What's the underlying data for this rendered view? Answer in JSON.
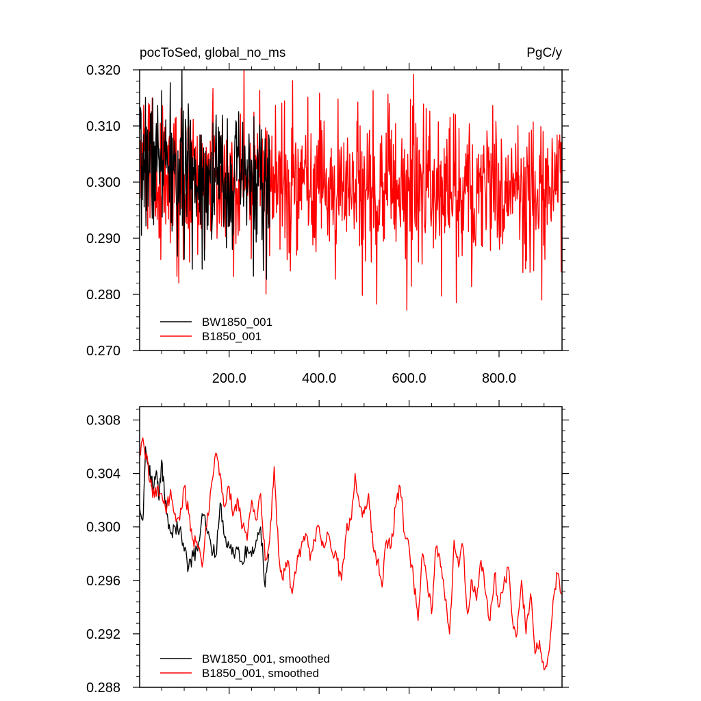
{
  "chart_data": [
    {
      "type": "line",
      "title_left": "pocToSed, global_no_ms",
      "title_right": "PgC/y",
      "xlim": [
        1,
        940
      ],
      "ylim": [
        0.27,
        0.32
      ],
      "x_ticks": [
        200.0,
        400.0,
        600.0,
        800.0
      ],
      "x_tick_labels": [
        "200.0",
        "400.0",
        "600.0",
        "800.0"
      ],
      "y_ticks": [
        0.27,
        0.28,
        0.29,
        0.3,
        0.31,
        0.32
      ],
      "y_tick_labels": [
        "0.270",
        "0.280",
        "0.290",
        "0.300",
        "0.310",
        "0.320"
      ],
      "legend_position": "bottom-left",
      "series": [
        {
          "name": "BW1850_001",
          "color": "#000000",
          "x_range": [
            1,
            290
          ],
          "mean_approx": 0.3,
          "notable_points": [
            [
              5,
              0.2905
            ],
            [
              50,
              0.3163
            ],
            [
              85,
              0.2868
            ],
            [
              140,
              0.2845
            ],
            [
              260,
              0.2893
            ],
            [
              283,
              0.2827
            ]
          ]
        },
        {
          "name": "B1850_001",
          "color": "#ff0000",
          "x_range": [
            1,
            940
          ],
          "mean_approx": 0.298,
          "notable_points": [
            [
              10,
              0.3137
            ],
            [
              48,
              0.2862
            ],
            [
              210,
              0.2832
            ],
            [
              442,
              0.3148
            ],
            [
              595,
              0.2772
            ],
            [
              610,
              0.3192
            ],
            [
              705,
              0.2785
            ],
            [
              895,
              0.279
            ],
            [
              938,
              0.284
            ]
          ]
        }
      ]
    },
    {
      "type": "line",
      "xlim": [
        1,
        940
      ],
      "ylim": [
        0.288,
        0.309
      ],
      "y_ticks": [
        0.288,
        0.292,
        0.296,
        0.3,
        0.304,
        0.308
      ],
      "y_tick_labels": [
        "0.288",
        "0.292",
        "0.296",
        "0.300",
        "0.304",
        "0.308"
      ],
      "legend_position": "bottom-left",
      "series": [
        {
          "name": "BW1850_001, smoothed",
          "color": "#000000",
          "x": [
            1,
            8,
            14,
            20,
            26,
            32,
            38,
            44,
            50,
            56,
            62,
            70,
            80,
            90,
            100,
            110,
            120,
            130,
            140,
            150,
            160,
            170,
            180,
            190,
            200,
            210,
            220,
            230,
            240,
            250,
            260,
            270,
            280,
            288
          ],
          "y": [
            0.3015,
            0.3005,
            0.306,
            0.3048,
            0.3038,
            0.3028,
            0.3042,
            0.302,
            0.305,
            0.3025,
            0.301,
            0.2995,
            0.3,
            0.2998,
            0.2982,
            0.297,
            0.2978,
            0.2982,
            0.301,
            0.2998,
            0.2985,
            0.2978,
            0.3018,
            0.2992,
            0.2985,
            0.298,
            0.2985,
            0.2972,
            0.2985,
            0.2978,
            0.299,
            0.3,
            0.2955,
            0.298
          ]
        },
        {
          "name": "B1850_001, smoothed",
          "color": "#ff0000",
          "x": [
            1,
            10,
            20,
            30,
            40,
            50,
            60,
            70,
            80,
            90,
            100,
            110,
            120,
            130,
            140,
            150,
            160,
            170,
            180,
            190,
            200,
            210,
            220,
            230,
            240,
            250,
            260,
            270,
            280,
            290,
            300,
            310,
            320,
            330,
            340,
            350,
            360,
            370,
            380,
            390,
            400,
            410,
            420,
            430,
            440,
            450,
            460,
            470,
            480,
            490,
            500,
            510,
            520,
            530,
            540,
            550,
            560,
            570,
            580,
            590,
            600,
            610,
            620,
            630,
            640,
            650,
            660,
            670,
            680,
            690,
            700,
            710,
            720,
            730,
            740,
            750,
            760,
            770,
            780,
            790,
            800,
            810,
            820,
            830,
            840,
            850,
            860,
            870,
            880,
            890,
            900,
            910,
            920,
            930,
            940
          ],
          "y": [
            0.3055,
            0.3062,
            0.3045,
            0.3022,
            0.303,
            0.3025,
            0.301,
            0.3028,
            0.301,
            0.3005,
            0.303,
            0.301,
            0.299,
            0.2985,
            0.297,
            0.3,
            0.303,
            0.3055,
            0.304,
            0.3015,
            0.303,
            0.301,
            0.302,
            0.3,
            0.299,
            0.302,
            0.3005,
            0.3025,
            0.2975,
            0.299,
            0.3045,
            0.298,
            0.296,
            0.2975,
            0.295,
            0.297,
            0.2985,
            0.2995,
            0.2975,
            0.299,
            0.3,
            0.2985,
            0.2995,
            0.298,
            0.2975,
            0.296,
            0.2995,
            0.3005,
            0.304,
            0.3015,
            0.301,
            0.3025,
            0.2985,
            0.2975,
            0.2955,
            0.299,
            0.2985,
            0.3015,
            0.303,
            0.2995,
            0.2985,
            0.296,
            0.293,
            0.298,
            0.296,
            0.2935,
            0.2985,
            0.297,
            0.2945,
            0.292,
            0.299,
            0.297,
            0.2985,
            0.2935,
            0.296,
            0.2945,
            0.2975,
            0.295,
            0.293,
            0.2965,
            0.294,
            0.2955,
            0.297,
            0.293,
            0.292,
            0.296,
            0.292,
            0.295,
            0.2905,
            0.2915,
            0.2893,
            0.2905,
            0.2945,
            0.2965,
            0.295
          ]
        }
      ]
    }
  ]
}
